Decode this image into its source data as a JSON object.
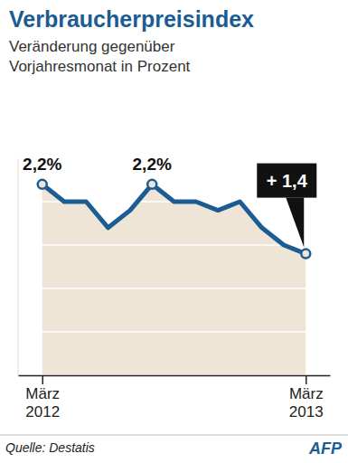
{
  "chart_data": {
    "type": "line",
    "title": "Verbraucherpreisindex",
    "subtitle": "Veränderung gegenüber Vorjahresmonat in Prozent",
    "categories": [
      "März 2012",
      null,
      null,
      null,
      null,
      null,
      null,
      null,
      null,
      null,
      null,
      null,
      "März 2013"
    ],
    "values": [
      2.2,
      2.0,
      2.0,
      1.7,
      1.9,
      2.2,
      2.0,
      2.0,
      1.9,
      2.0,
      1.7,
      1.5,
      1.4
    ],
    "value_labels": [
      "2,2%",
      null,
      null,
      null,
      null,
      "2,2%",
      null,
      null,
      null,
      null,
      null,
      null,
      "+ 1,4"
    ],
    "data_labels": true,
    "color": "#1b5c93",
    "ylim": [
      0,
      2.5
    ],
    "yticks": [
      0,
      0.5,
      1,
      1.5,
      2,
      2.5
    ],
    "grid": true,
    "tick_labels": "x",
    "source": "Quelle: Destatis",
    "credit": "AFP"
  }
}
